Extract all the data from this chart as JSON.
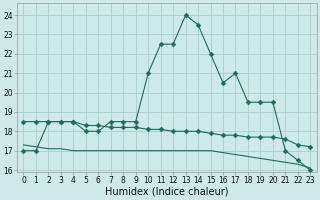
{
  "xlabel": "Humidex (Indice chaleur)",
  "background_color": "#ceeae8",
  "grid_color": "#aacfcc",
  "line_color": "#1d6b5c",
  "xlim": [
    -0.5,
    23.5
  ],
  "ylim": [
    15.9,
    24.6
  ],
  "yticks": [
    16,
    17,
    18,
    19,
    20,
    21,
    22,
    23,
    24
  ],
  "xtick_labels": [
    "0",
    "1",
    "2",
    "3",
    "4",
    "5",
    "6",
    "7",
    "8",
    "9",
    "10",
    "11",
    "12",
    "13",
    "14",
    "15",
    "16",
    "17",
    "18",
    "19",
    "20",
    "21",
    "22",
    "23"
  ],
  "series1": [
    17.0,
    17.0,
    18.5,
    18.5,
    18.5,
    18.0,
    18.0,
    18.5,
    18.5,
    18.5,
    21.0,
    22.5,
    22.5,
    24.0,
    23.5,
    22.0,
    20.5,
    21.0,
    19.5,
    19.5,
    19.5,
    17.0,
    16.5,
    16.0
  ],
  "series2": [
    18.5,
    18.5,
    18.5,
    18.5,
    18.5,
    18.3,
    18.3,
    18.2,
    18.2,
    18.2,
    18.1,
    18.1,
    18.0,
    18.0,
    18.0,
    17.9,
    17.8,
    17.8,
    17.7,
    17.7,
    17.7,
    17.6,
    17.3,
    17.2
  ],
  "series3": [
    17.3,
    17.2,
    17.1,
    17.1,
    17.0,
    17.0,
    17.0,
    17.0,
    17.0,
    17.0,
    17.0,
    17.0,
    17.0,
    17.0,
    17.0,
    17.0,
    16.9,
    16.8,
    16.7,
    16.6,
    16.5,
    16.4,
    16.3,
    16.1
  ],
  "marker": "D",
  "marker_size": 2.5,
  "linewidth": 0.8,
  "tick_fontsize": 5.5,
  "xlabel_fontsize": 7.0
}
